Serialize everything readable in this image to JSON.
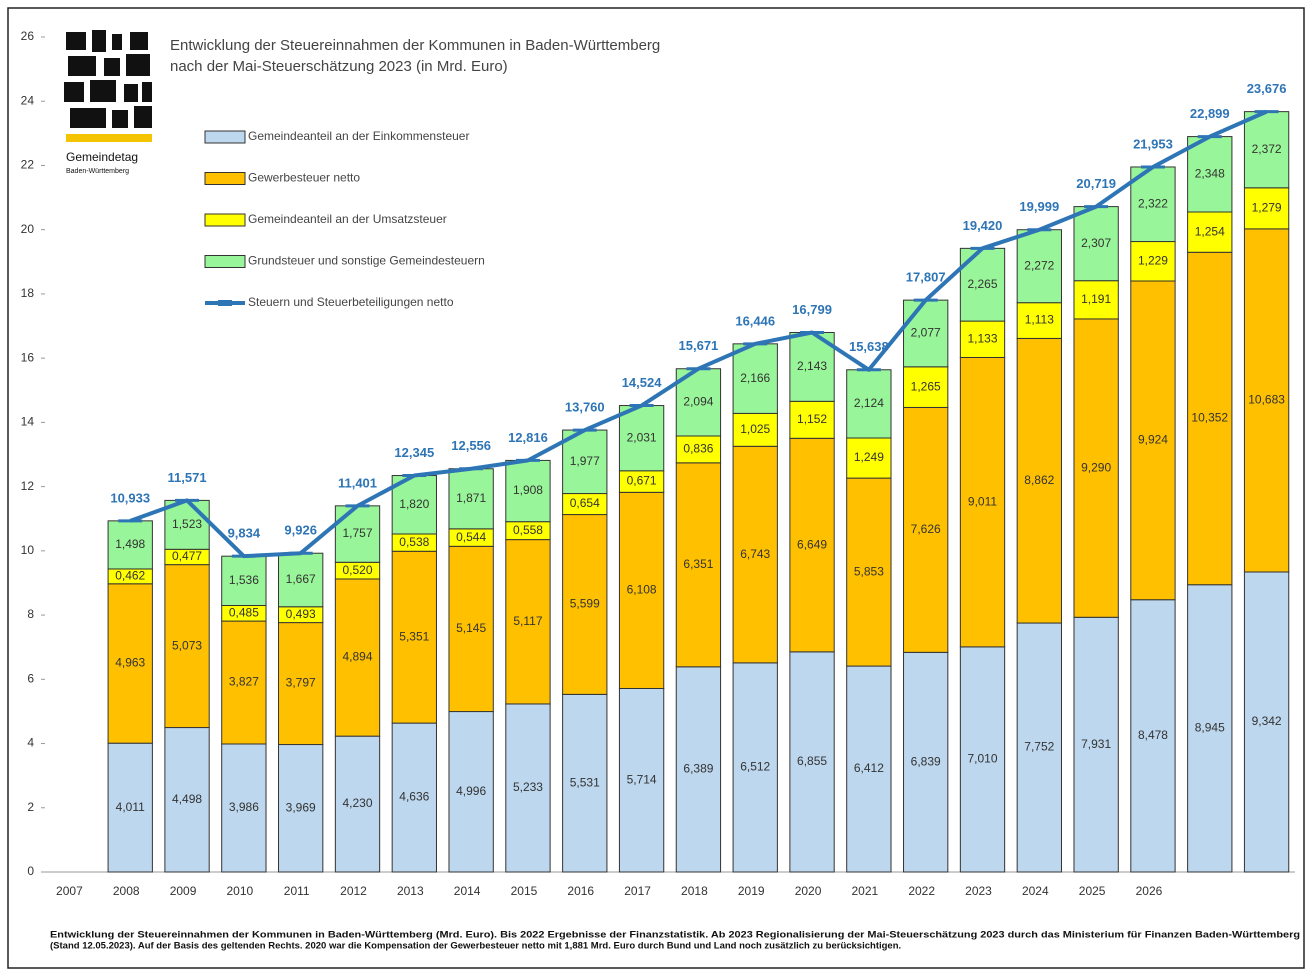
{
  "chart_data": {
    "type": "bar",
    "stacked": true,
    "title": [
      "Entwicklung der Steuereinnahmen der Kommunen in Baden-Württemberg",
      "nach der Mai-Steuerschätzung 2023 (in Mrd. Euro)"
    ],
    "logo": {
      "name": "Gemeindetag",
      "region": "Baden-Württemberg"
    },
    "categories": [
      "2007",
      "2008",
      "2009",
      "2010",
      "2011",
      "2012",
      "2013",
      "2014",
      "2015",
      "2016",
      "2017",
      "2018",
      "2019",
      "2020",
      "2021",
      "2022",
      "2023",
      "2024",
      "2025",
      "2026",
      null,
      null
    ],
    "ylim": [
      0,
      26
    ],
    "yticks": [
      0,
      2,
      4,
      6,
      8,
      10,
      12,
      14,
      16,
      18,
      20,
      22,
      24,
      26
    ],
    "legend": "upper left",
    "series": [
      {
        "name": "Gemeindeanteil an der Einkommensteuer",
        "type": "bar",
        "color": "#bdd7ee",
        "values": [
          null,
          4.011,
          4.498,
          3.986,
          3.969,
          4.23,
          4.636,
          4.996,
          5.233,
          5.531,
          5.714,
          6.389,
          6.512,
          6.855,
          6.412,
          6.839,
          7.01,
          7.752,
          7.931,
          8.478,
          8.945,
          9.342
        ],
        "value_labels": [
          null,
          "4,011",
          "4,498",
          "3,986",
          "3,969",
          "4,230",
          "4,636",
          "4,996",
          "5,233",
          "5,531",
          "5,714",
          "6,389",
          "6,512",
          "6,855",
          "6,412",
          "6,839",
          "7,010",
          "7,752",
          "7,931",
          "8,478",
          "8,945",
          "9,342"
        ]
      },
      {
        "name": "Gewerbesteuer netto",
        "type": "bar",
        "color": "#ffc000",
        "values": [
          null,
          4.963,
          5.073,
          3.827,
          3.797,
          4.894,
          5.351,
          5.145,
          5.117,
          5.599,
          6.108,
          6.351,
          6.743,
          6.649,
          5.853,
          7.626,
          9.011,
          8.862,
          9.29,
          9.924,
          10.352,
          10.683
        ],
        "value_labels": [
          null,
          "4,963",
          "5,073",
          "3,827",
          "3,797",
          "4,894",
          "5,351",
          "5,145",
          "5,117",
          "5,599",
          "6,108",
          "6,351",
          "6,743",
          "6,649",
          "5,853",
          "7,626",
          "9,011",
          "8,862",
          "9,290",
          "9,924",
          "10,352",
          "10,683"
        ]
      },
      {
        "name": "Gemeindeanteil an der Umsatzsteuer",
        "type": "bar",
        "color": "#ffff00",
        "values": [
          null,
          0.462,
          0.477,
          0.485,
          0.493,
          0.52,
          0.538,
          0.544,
          0.558,
          0.654,
          0.671,
          0.836,
          1.025,
          1.152,
          1.249,
          1.265,
          1.133,
          1.113,
          1.191,
          1.229,
          1.254,
          1.279
        ],
        "value_labels": [
          null,
          "0,462",
          "0,477",
          "0,485",
          "0,493",
          "0,520",
          "0,538",
          "0,544",
          "0,558",
          "0,654",
          "0,671",
          "0,836",
          "1,025",
          "1,152",
          "1,249",
          "1,265",
          "1,133",
          "1,113",
          "1,191",
          "1,229",
          "1,254",
          "1,279"
        ]
      },
      {
        "name": "Grundsteuer und sonstige Gemeindesteuern",
        "type": "bar",
        "color": "#99f599",
        "values": [
          null,
          1.498,
          1.523,
          1.536,
          1.667,
          1.757,
          1.82,
          1.871,
          1.908,
          1.977,
          2.031,
          2.094,
          2.166,
          2.143,
          2.124,
          2.077,
          2.265,
          2.272,
          2.307,
          2.322,
          2.348,
          2.372
        ],
        "value_labels": [
          null,
          "1,498",
          "1,523",
          "1,536",
          "1,667",
          "1,757",
          "1,820",
          "1,871",
          "1,908",
          "1,977",
          "2,031",
          "2,094",
          "2,166",
          "2,143",
          "2,124",
          "2,077",
          "2,265",
          "2,272",
          "2,307",
          "2,322",
          "2,348",
          "2,372"
        ]
      },
      {
        "name": "Steuern und Steuerbeteiligungen netto",
        "type": "line",
        "color": "#2e75b6",
        "values": [
          null,
          10.933,
          11.571,
          9.834,
          9.926,
          11.401,
          12.345,
          12.556,
          12.816,
          13.76,
          14.524,
          15.671,
          16.446,
          16.799,
          15.638,
          17.807,
          19.42,
          19.999,
          20.719,
          21.953,
          22.899,
          23.676
        ],
        "value_labels": [
          null,
          "10,933",
          "11,571",
          "9,834",
          "9,926",
          "11,401",
          "12,345",
          "12,556",
          "12,816",
          "13,760",
          "14,524",
          "15,671",
          "16,446",
          "16,799",
          "15,638",
          "17,807",
          "19,420",
          "19,999",
          "20,719",
          "21,953",
          "22,899",
          "23,676"
        ]
      }
    ],
    "footnote": [
      "Entwicklung der Steuereinnahmen der Kommunen in Baden-Württemberg (Mrd. Euro). Bis 2022 Ergebnisse der Finanzstatistik. Ab 2023 Regionalisierung der Mai-Steuerschätzung 2023 durch das Ministerium für Finanzen Baden-Württemberg",
      "(Stand 12.05.2023). Auf der Basis des geltenden Rechts. 2020 war die Kompensation der Gewerbesteuer netto mit 1,881 Mrd. Euro durch Bund und Land noch zusätzlich zu berücksichtigen."
    ]
  }
}
